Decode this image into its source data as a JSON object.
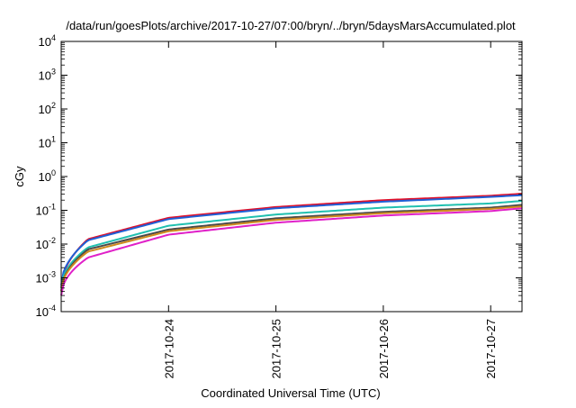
{
  "chart_data": {
    "type": "line",
    "title": "/data/run/goesPlots/archive/2017-10-27/07:00/bryn/../bryn/5daysMarsAccumulated.plot",
    "xlabel": "Coordinated Universal Time (UTC)",
    "ylabel": "cGy",
    "yscale": "log",
    "ylim": [
      0.0001,
      10000
    ],
    "xlim": [
      "2017-10-23 00:00",
      "2017-10-27 07:00"
    ],
    "grid": false,
    "legend": "none",
    "x_ticks": [
      "2017-10-24",
      "2017-10-25",
      "2017-10-26",
      "2017-10-27"
    ],
    "y_ticks": [
      {
        "base": "10",
        "exp": "-4"
      },
      {
        "base": "10",
        "exp": "-3"
      },
      {
        "base": "10",
        "exp": "-2"
      },
      {
        "base": "10",
        "exp": "-1"
      },
      {
        "base": "10",
        "exp": "0"
      },
      {
        "base": "10",
        "exp": "1"
      },
      {
        "base": "10",
        "exp": "2"
      },
      {
        "base": "10",
        "exp": "3"
      },
      {
        "base": "10",
        "exp": "4"
      }
    ],
    "x": [
      "2017-10-23 00:00",
      "2017-10-23 06:00",
      "2017-10-24 00:00",
      "2017-10-25 00:00",
      "2017-10-26 00:00",
      "2017-10-27 00:00",
      "2017-10-27 07:00"
    ],
    "series": [
      {
        "color": "#e0102a",
        "values": [
          0.0005,
          0.014,
          0.06,
          0.125,
          0.2,
          0.27,
          0.31
        ]
      },
      {
        "color": "#1f5fd6",
        "values": [
          0.0006,
          0.013,
          0.055,
          0.115,
          0.18,
          0.25,
          0.28
        ]
      },
      {
        "color": "#20c0b0",
        "values": [
          0.0005,
          0.008,
          0.035,
          0.075,
          0.12,
          0.16,
          0.19
        ]
      },
      {
        "color": "#4a4a4a",
        "values": [
          0.0004,
          0.007,
          0.027,
          0.058,
          0.09,
          0.12,
          0.145
        ]
      },
      {
        "color": "#d08a1e",
        "values": [
          0.0004,
          0.006,
          0.024,
          0.052,
          0.082,
          0.11,
          0.13
        ]
      },
      {
        "color": "#e020c8",
        "values": [
          0.0003,
          0.004,
          0.019,
          0.043,
          0.07,
          0.095,
          0.115
        ]
      }
    ]
  }
}
